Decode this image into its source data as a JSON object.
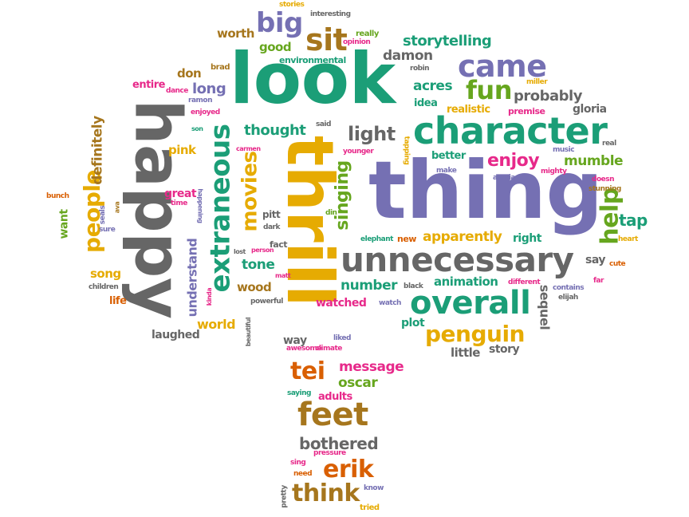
{
  "colors": {
    "green": "#1b9e77",
    "orange": "#d95f02",
    "purple": "#7570b3",
    "pink": "#e7298a",
    "lime": "#66a61e",
    "gold": "#e6ab02",
    "brown": "#a6761d",
    "gray": "#666666"
  },
  "words": [
    {
      "text": "look",
      "color": "green"
    },
    {
      "text": "thing",
      "color": "purple"
    },
    {
      "text": "happy",
      "color": "gray"
    },
    {
      "text": "thrill",
      "color": "gold"
    },
    {
      "text": "unnecessary",
      "color": "gray"
    },
    {
      "text": "character",
      "color": "green"
    },
    {
      "text": "extraneous",
      "color": "green"
    },
    {
      "text": "overall",
      "color": "green"
    },
    {
      "text": "feet",
      "color": "brown"
    },
    {
      "text": "people",
      "color": "gold"
    },
    {
      "text": "came",
      "color": "purple"
    },
    {
      "text": "sit",
      "color": "brown"
    },
    {
      "text": "big",
      "color": "purple"
    },
    {
      "text": "fun",
      "color": "lime"
    },
    {
      "text": "help",
      "color": "lime"
    },
    {
      "text": "penguin",
      "color": "gold"
    },
    {
      "text": "movies",
      "color": "gold"
    },
    {
      "text": "tei",
      "color": "orange"
    },
    {
      "text": "erik",
      "color": "orange"
    },
    {
      "text": "think",
      "color": "brown"
    },
    {
      "text": "light",
      "color": "gray"
    },
    {
      "text": "enjoy",
      "color": "pink"
    },
    {
      "text": "singing",
      "color": "lime"
    },
    {
      "text": "definitely",
      "color": "brown"
    },
    {
      "text": "storytelling",
      "color": "green"
    },
    {
      "text": "probably",
      "color": "gray"
    },
    {
      "text": "understand",
      "color": "purple"
    },
    {
      "text": "tap",
      "color": "green"
    },
    {
      "text": "mumble",
      "color": "lime"
    },
    {
      "text": "sequel",
      "color": "gray"
    },
    {
      "text": "apparently",
      "color": "gold"
    },
    {
      "text": "number",
      "color": "green"
    },
    {
      "text": "message",
      "color": "pink"
    },
    {
      "text": "oscar",
      "color": "lime"
    },
    {
      "text": "bothered",
      "color": "gray"
    },
    {
      "text": "thought",
      "color": "green"
    },
    {
      "text": "long",
      "color": "purple"
    },
    {
      "text": "damon",
      "color": "gray"
    },
    {
      "text": "good",
      "color": "lime"
    },
    {
      "text": "worth",
      "color": "brown"
    },
    {
      "text": "acres",
      "color": "green"
    },
    {
      "text": "tone",
      "color": "green"
    },
    {
      "text": "wood",
      "color": "brown"
    },
    {
      "text": "world",
      "color": "gold"
    },
    {
      "text": "song",
      "color": "gold"
    },
    {
      "text": "animation",
      "color": "green"
    },
    {
      "text": "watched",
      "color": "pink"
    },
    {
      "text": "want",
      "color": "lime"
    },
    {
      "text": "little",
      "color": "gray"
    },
    {
      "text": "story",
      "color": "gray"
    },
    {
      "text": "laughed",
      "color": "gray"
    },
    {
      "text": "way",
      "color": "gray"
    },
    {
      "text": "plot",
      "color": "green"
    },
    {
      "text": "don",
      "color": "brown"
    },
    {
      "text": "pink",
      "color": "gold"
    },
    {
      "text": "great",
      "color": "pink"
    },
    {
      "text": "realistic",
      "color": "gold"
    },
    {
      "text": "better",
      "color": "green"
    },
    {
      "text": "gloria",
      "color": "gray"
    },
    {
      "text": "idea",
      "color": "green"
    },
    {
      "text": "right",
      "color": "green"
    },
    {
      "text": "say",
      "color": "gray"
    },
    {
      "text": "life",
      "color": "orange"
    },
    {
      "text": "adults",
      "color": "pink"
    },
    {
      "text": "entire",
      "color": "pink"
    },
    {
      "text": "pitt",
      "color": "gray"
    },
    {
      "text": "fact",
      "color": "gray"
    },
    {
      "text": "new",
      "color": "orange"
    },
    {
      "text": "premise",
      "color": "pink"
    },
    {
      "text": "environmental",
      "color": "green"
    },
    {
      "text": "really",
      "color": "lime"
    },
    {
      "text": "interesting",
      "color": "gray"
    },
    {
      "text": "stories",
      "color": "gold"
    },
    {
      "text": "opinion",
      "color": "pink"
    },
    {
      "text": "brad",
      "color": "brown"
    },
    {
      "text": "robin",
      "color": "gray"
    },
    {
      "text": "dance",
      "color": "pink"
    },
    {
      "text": "ramon",
      "color": "purple"
    },
    {
      "text": "enjoyed",
      "color": "pink"
    },
    {
      "text": "son",
      "color": "green"
    },
    {
      "text": "said",
      "color": "gray"
    },
    {
      "text": "carmen",
      "color": "pink"
    },
    {
      "text": "younger",
      "color": "pink"
    },
    {
      "text": "tapping",
      "color": "gold"
    },
    {
      "text": "music",
      "color": "purple"
    },
    {
      "text": "real",
      "color": "gray"
    },
    {
      "text": "miller",
      "color": "gold"
    },
    {
      "text": "mighty",
      "color": "pink"
    },
    {
      "text": "make",
      "color": "purple"
    },
    {
      "text": "azaria",
      "color": "purple"
    },
    {
      "text": "doesn",
      "color": "pink"
    },
    {
      "text": "stunning",
      "color": "brown"
    },
    {
      "text": "bunch",
      "color": "orange"
    },
    {
      "text": "time",
      "color": "pink"
    },
    {
      "text": "happening",
      "color": "purple"
    },
    {
      "text": "seals",
      "color": "purple"
    },
    {
      "text": "ava",
      "color": "brown"
    },
    {
      "text": "sure",
      "color": "purple"
    },
    {
      "text": "din",
      "color": "lime"
    },
    {
      "text": "dark",
      "color": "gray"
    },
    {
      "text": "heart",
      "color": "gold"
    },
    {
      "text": "elephant",
      "color": "green"
    },
    {
      "text": "cute",
      "color": "orange"
    },
    {
      "text": "far",
      "color": "pink"
    },
    {
      "text": "contains",
      "color": "purple"
    },
    {
      "text": "elijah",
      "color": "gray"
    },
    {
      "text": "different",
      "color": "pink"
    },
    {
      "text": "black",
      "color": "gray"
    },
    {
      "text": "watch",
      "color": "purple"
    },
    {
      "text": "kinda",
      "color": "pink"
    },
    {
      "text": "matt",
      "color": "pink"
    },
    {
      "text": "powerful",
      "color": "gray"
    },
    {
      "text": "children",
      "color": "gray"
    },
    {
      "text": "beautiful",
      "color": "gray"
    },
    {
      "text": "awesome",
      "color": "pink"
    },
    {
      "text": "liked",
      "color": "purple"
    },
    {
      "text": "climate",
      "color": "pink"
    },
    {
      "text": "person",
      "color": "pink"
    },
    {
      "text": "lost",
      "color": "gray"
    },
    {
      "text": "saying",
      "color": "green"
    },
    {
      "text": "pressure",
      "color": "pink"
    },
    {
      "text": "sing",
      "color": "pink"
    },
    {
      "text": "need",
      "color": "orange"
    },
    {
      "text": "pretty",
      "color": "gray"
    },
    {
      "text": "know",
      "color": "purple"
    },
    {
      "text": "tried",
      "color": "gold"
    }
  ]
}
